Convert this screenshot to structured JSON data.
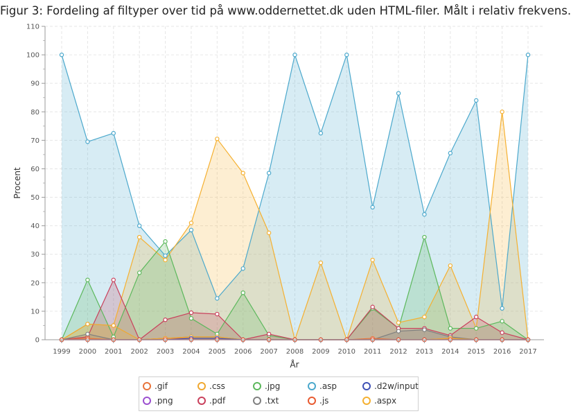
{
  "chart_data": {
    "type": "area",
    "title": "Figur 3: Fordeling af filtyper over tid på www.oddernettet.dk uden HTML-filer. Målt i relativ frekvens.",
    "xlabel": "År",
    "ylabel": "Procent",
    "ylim": [
      0,
      110
    ],
    "yticks": [
      "0",
      "10",
      "20",
      "30",
      "40",
      "50",
      "60",
      "70",
      "80",
      "90",
      "100",
      "110"
    ],
    "grid": true,
    "legend_position": "bottom",
    "categories": [
      "1999",
      "2000",
      "2001",
      "2002",
      "2003",
      "2004",
      "2005",
      "2006",
      "2007",
      "2008",
      "2009",
      "2010",
      "2011",
      "2012",
      "2013",
      "2014",
      "2015",
      "2016",
      "2017"
    ],
    "series": [
      {
        "name": ".gif",
        "color": "#e8743b",
        "values": [
          0,
          0.5,
          0,
          0,
          0.5,
          0.5,
          0.5,
          0,
          0,
          0,
          0,
          0,
          0.5,
          0,
          0,
          0.5,
          0,
          0,
          0
        ]
      },
      {
        "name": ".css",
        "color": "#f0a830",
        "values": [
          0,
          5.5,
          5,
          0,
          0.5,
          1,
          1,
          0,
          0,
          0,
          0,
          0,
          0,
          0,
          0,
          0.5,
          0,
          0,
          0
        ]
      },
      {
        "name": ".jpg",
        "color": "#5cb85c",
        "values": [
          0,
          21,
          1,
          23.5,
          34.5,
          7.5,
          2,
          16.5,
          1.5,
          0,
          0,
          0,
          11,
          4,
          36,
          4,
          4,
          6.5,
          0
        ]
      },
      {
        "name": ".asp",
        "color": "#4ba8cc",
        "values": [
          100,
          69.5,
          72.5,
          40,
          29.5,
          38.5,
          14.5,
          25,
          58.5,
          100,
          72.5,
          100,
          46.5,
          86.5,
          44,
          65.5,
          84,
          11,
          100
        ]
      },
      {
        "name": ".d2w/input",
        "color": "#3f51b5",
        "values": [
          0,
          0,
          0,
          0,
          0,
          0.5,
          0.5,
          0,
          0,
          0,
          0,
          0,
          0,
          0,
          0,
          0,
          0,
          0,
          0
        ]
      },
      {
        "name": ".png",
        "color": "#9c4fd0",
        "values": [
          0,
          0,
          0,
          0,
          0,
          0,
          0,
          0,
          0,
          0,
          0,
          0,
          0,
          0,
          0,
          0,
          0,
          0,
          0
        ]
      },
      {
        "name": ".pdf",
        "color": "#c9405c",
        "values": [
          0,
          1,
          21,
          0,
          7,
          9.5,
          9,
          0,
          2,
          0,
          0,
          0,
          11.5,
          4,
          4,
          1.5,
          8,
          2.5,
          0
        ]
      },
      {
        "name": ".txt",
        "color": "#808080",
        "values": [
          0,
          2,
          0,
          0,
          0.5,
          1,
          1,
          0,
          0,
          0,
          0,
          0,
          0,
          3,
          3.5,
          1,
          0,
          0,
          0
        ]
      },
      {
        "name": ".js",
        "color": "#e85a30",
        "values": [
          0,
          0,
          0,
          0,
          0,
          0,
          0,
          0,
          0,
          0,
          0,
          0,
          0,
          0,
          0,
          0,
          0,
          0,
          0
        ]
      },
      {
        "name": ".aspx",
        "color": "#f5b030",
        "values": [
          0,
          5.5,
          5,
          36,
          28,
          41,
          70.5,
          58.5,
          37.5,
          0,
          27,
          0,
          28,
          6,
          8,
          26,
          4,
          80,
          0
        ]
      }
    ]
  }
}
